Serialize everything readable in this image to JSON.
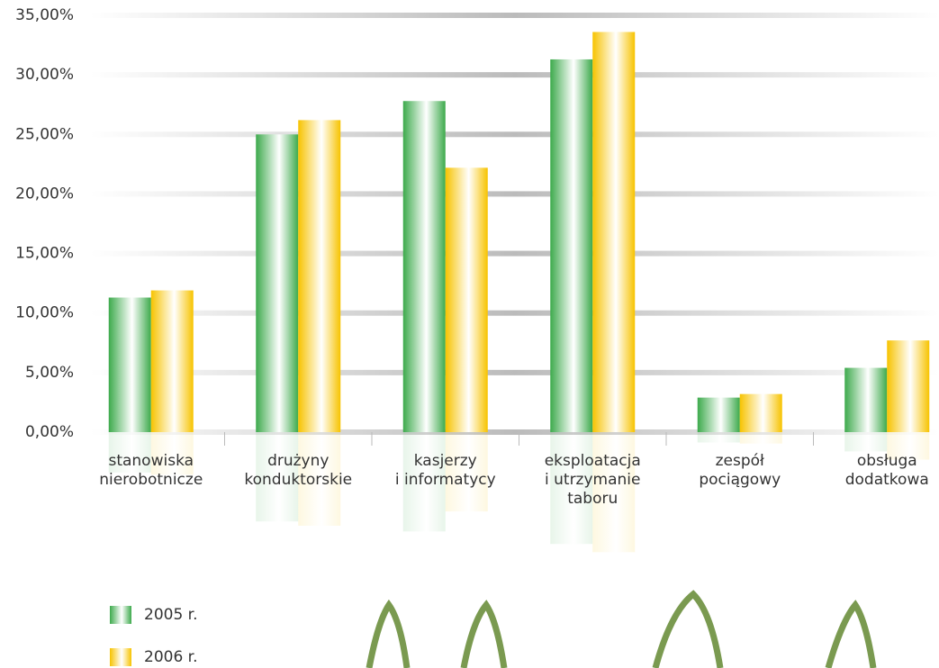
{
  "chart_data": {
    "type": "bar",
    "categories": [
      "stanowiska\nnierobotnicze",
      "drużyny\nkonduktorskie",
      "kasjerzy\ni informatycy",
      "eksploatacja\ni utrzymanie\ntaboru",
      "zespół\npociągowy",
      "obsługa\ndodatkowa"
    ],
    "series": [
      {
        "name": "2005 r.",
        "color": "#3daa4c",
        "values": [
          11.3,
          25.0,
          27.8,
          31.3,
          2.9,
          5.4
        ]
      },
      {
        "name": "2006 r.",
        "color": "#f7c300",
        "values": [
          11.9,
          26.2,
          22.2,
          33.6,
          3.2,
          7.7
        ]
      }
    ],
    "ylim": [
      0,
      35
    ],
    "yticks": [
      {
        "value": 0,
        "label": "0,00%"
      },
      {
        "value": 5,
        "label": "5,00%"
      },
      {
        "value": 10,
        "label": "10,00%"
      },
      {
        "value": 15,
        "label": "15,00%"
      },
      {
        "value": 20,
        "label": "20,00%"
      },
      {
        "value": 25,
        "label": "25,00%"
      },
      {
        "value": 30,
        "label": "30,00%"
      },
      {
        "value": 35,
        "label": "35,00%"
      }
    ],
    "grid": true
  }
}
